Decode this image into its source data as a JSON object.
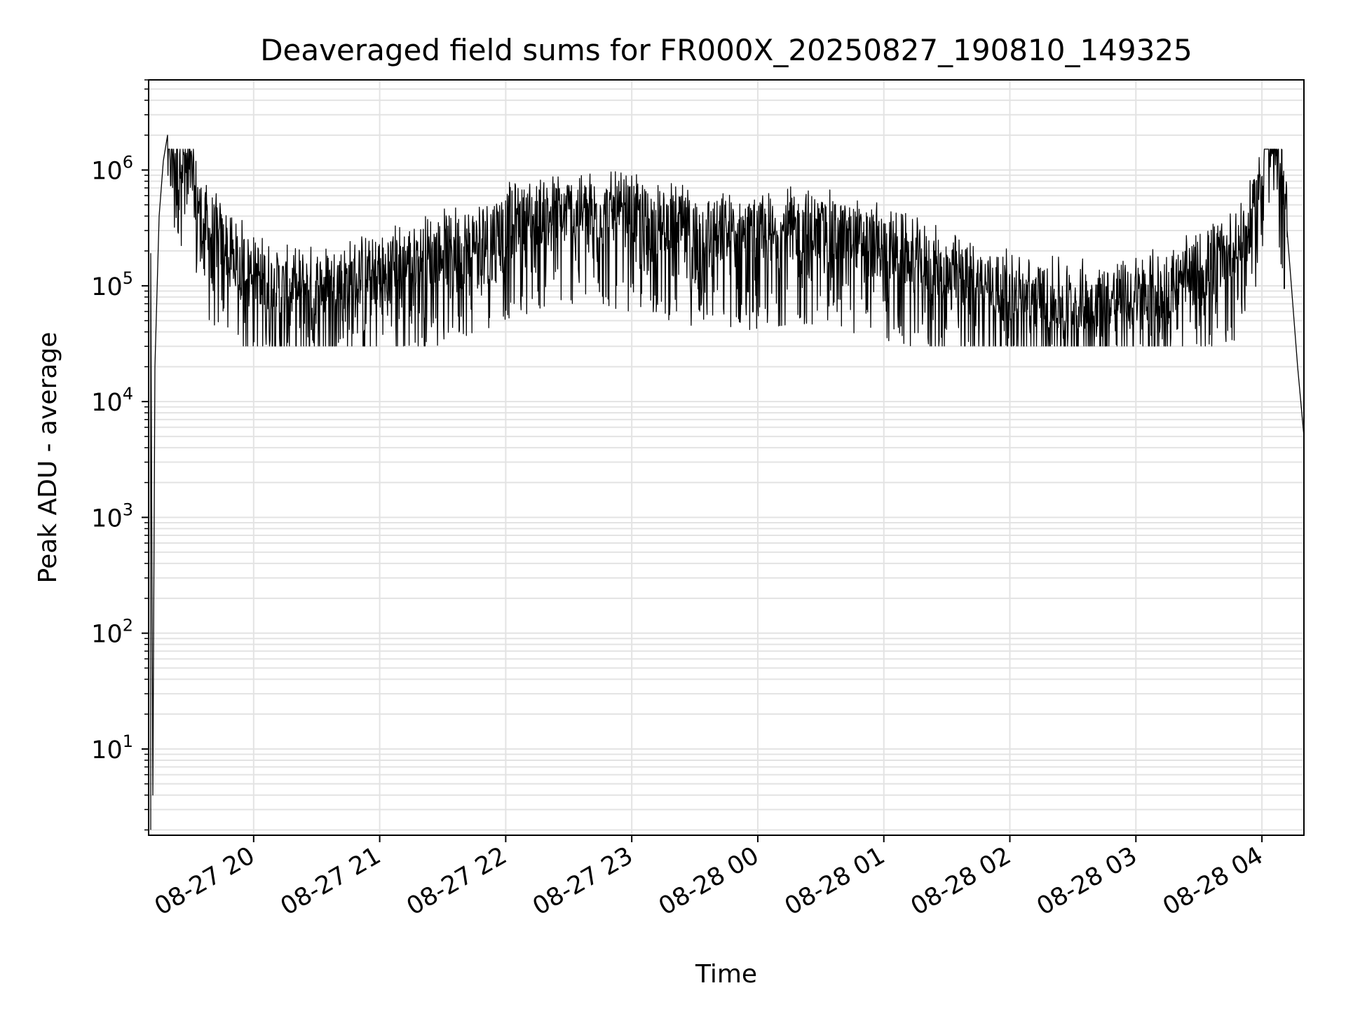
{
  "chart_data": {
    "type": "line",
    "title": "Deaveraged field sums for FR000X_20250827_190810_149325",
    "xlabel": "Time",
    "ylabel": "Peak ADU - average",
    "yscale": "log",
    "ylim": [
      1.8,
      6000000
    ],
    "xlim": [
      "2025-08-27 19:10",
      "2025-08-28 04:20"
    ],
    "grid": true,
    "x_ticks": [
      "08-27 20",
      "08-27 21",
      "08-27 22",
      "08-27 23",
      "08-28 00",
      "08-28 01",
      "08-28 02",
      "08-28 03",
      "08-28 04"
    ],
    "y_ticks": [
      {
        "base": "10",
        "exp": "1",
        "value": 10
      },
      {
        "base": "10",
        "exp": "2",
        "value": 100
      },
      {
        "base": "10",
        "exp": "3",
        "value": 1000
      },
      {
        "base": "10",
        "exp": "4",
        "value": 10000
      },
      {
        "base": "10",
        "exp": "5",
        "value": 100000
      },
      {
        "base": "10",
        "exp": "6",
        "value": 1000000
      }
    ],
    "line_color": "#000000",
    "grid_color": "#e3e3e3",
    "series": [
      {
        "points": [
          [
            "2025-08-27 19:11",
            2
          ],
          [
            "2025-08-27 19:11",
            190000
          ],
          [
            "2025-08-27 19:12",
            4
          ],
          [
            "2025-08-27 19:13",
            20000
          ],
          [
            "2025-08-27 19:15",
            400000
          ],
          [
            "2025-08-27 19:17",
            1200000
          ],
          [
            "2025-08-27 19:19",
            2000000
          ],
          [
            "2025-08-27 19:20",
            3000000
          ],
          [
            "2025-08-27 19:22",
            1100000
          ],
          [
            "2025-08-27 19:25",
            1300000
          ],
          [
            "2025-08-27 19:30",
            800000
          ],
          [
            "2025-08-27 19:36",
            300000
          ],
          [
            "2025-08-27 19:45",
            200000
          ],
          [
            "2025-08-27 20:00",
            110000
          ],
          [
            "2025-08-27 20:15",
            80000
          ],
          [
            "2025-08-27 20:30",
            85000
          ],
          [
            "2025-08-27 20:45",
            95000
          ],
          [
            "2025-08-27 21:00",
            120000
          ],
          [
            "2025-08-27 21:15",
            140000
          ],
          [
            "2025-08-27 21:30",
            170000
          ],
          [
            "2025-08-27 21:45",
            210000
          ],
          [
            "2025-08-27 22:00",
            280000
          ],
          [
            "2025-08-27 22:15",
            340000
          ],
          [
            "2025-08-27 22:30",
            380000
          ],
          [
            "2025-08-27 22:45",
            360000
          ],
          [
            "2025-08-27 23:00",
            330000
          ],
          [
            "2025-08-27 23:15",
            290000
          ],
          [
            "2025-08-27 23:30",
            250000
          ],
          [
            "2025-08-27 23:45",
            240000
          ],
          [
            "2025-08-28 00:00",
            230000
          ],
          [
            "2025-08-28 00:15",
            260000
          ],
          [
            "2025-08-28 00:30",
            250000
          ],
          [
            "2025-08-28 00:45",
            220000
          ],
          [
            "2025-08-28 01:00",
            180000
          ],
          [
            "2025-08-28 01:15",
            140000
          ],
          [
            "2025-08-28 01:30",
            110000
          ],
          [
            "2025-08-28 01:45",
            90000
          ],
          [
            "2025-08-28 02:00",
            75000
          ],
          [
            "2025-08-28 02:15",
            65000
          ],
          [
            "2025-08-28 02:30",
            62000
          ],
          [
            "2025-08-28 02:45",
            65000
          ],
          [
            "2025-08-28 03:00",
            70000
          ],
          [
            "2025-08-28 03:15",
            80000
          ],
          [
            "2025-08-28 03:30",
            110000
          ],
          [
            "2025-08-28 03:45",
            170000
          ],
          [
            "2025-08-28 03:55",
            300000
          ],
          [
            "2025-08-28 04:00",
            800000
          ],
          [
            "2025-08-28 04:02",
            2300000
          ],
          [
            "2025-08-28 04:05",
            1600000
          ],
          [
            "2025-08-28 04:08",
            1200000
          ],
          [
            "2025-08-28 04:12",
            300000
          ],
          [
            "2025-08-28 04:17",
            20000
          ],
          [
            "2025-08-28 04:20",
            5000
          ]
        ]
      }
    ]
  }
}
